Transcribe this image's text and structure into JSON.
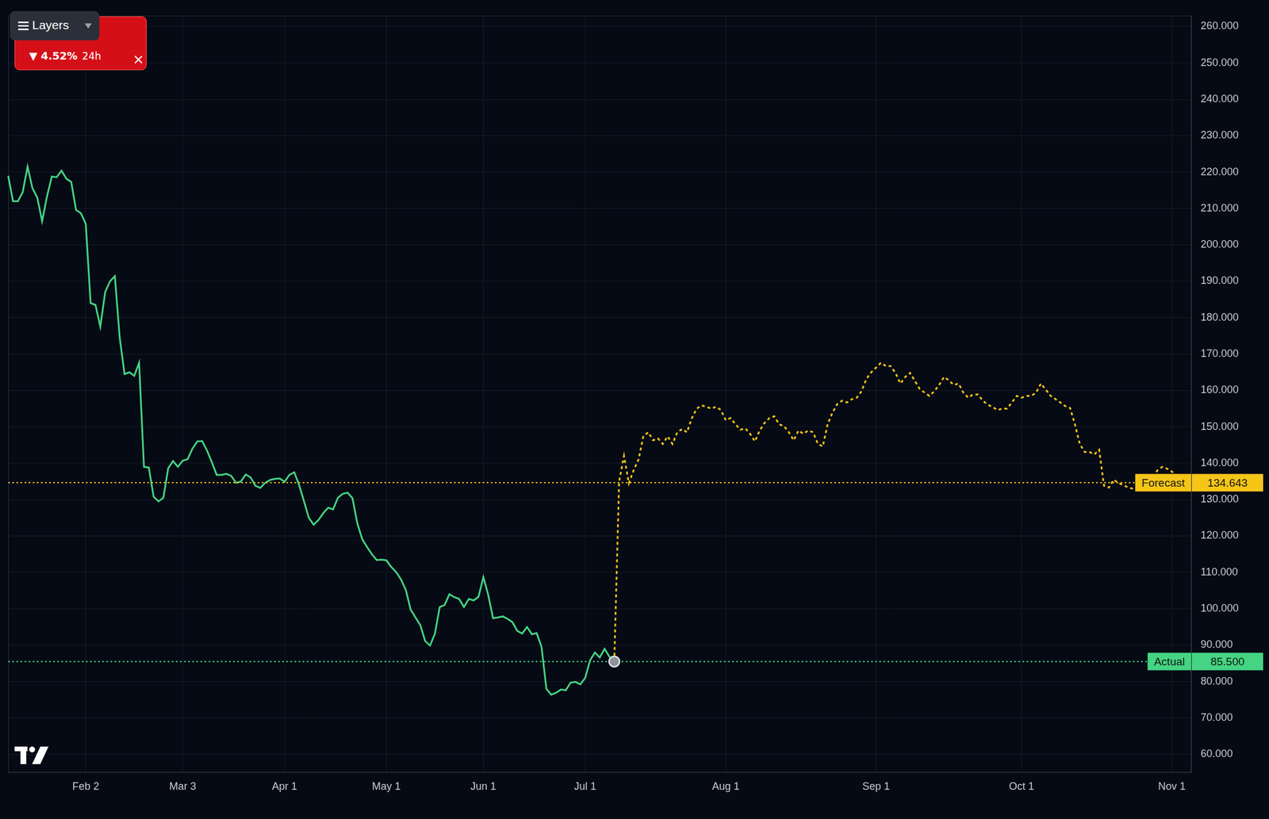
{
  "chart_data": {
    "type": "line",
    "categories": [
      null,
      null,
      null,
      null,
      null,
      null,
      null,
      null,
      null,
      null,
      null,
      null,
      null,
      null,
      null,
      null,
      "Feb 2",
      null,
      null,
      null,
      null,
      null,
      null,
      null,
      null,
      null,
      null,
      null,
      null,
      null,
      null,
      null,
      null,
      null,
      null,
      null,
      "Mar 3",
      null,
      null,
      null,
      null,
      null,
      null,
      null,
      null,
      null,
      null,
      null,
      null,
      null,
      null,
      null,
      null,
      null,
      null,
      null,
      null,
      "Apr 1",
      null,
      null,
      null,
      null,
      null,
      null,
      null,
      null,
      null,
      null,
      null,
      null,
      null,
      null,
      null,
      null,
      null,
      null,
      null,
      null,
      "May 1",
      null,
      null,
      null,
      null,
      null,
      null,
      null,
      null,
      null,
      null,
      null,
      null,
      null,
      null,
      null,
      null,
      null,
      null,
      null,
      "Jun 1",
      null,
      null,
      null,
      null,
      null,
      null,
      null,
      null,
      null,
      null,
      null,
      null,
      null,
      null,
      null,
      null,
      null,
      null,
      null,
      null,
      "Jul 1",
      null,
      null,
      null,
      null,
      null,
      null,
      null,
      null,
      null,
      null,
      null,
      null,
      null,
      null,
      null,
      null,
      null,
      null,
      null,
      null,
      null,
      null,
      null,
      null,
      null,
      null,
      null,
      null,
      "Aug 1",
      null,
      null,
      null,
      null,
      null,
      null,
      null,
      null,
      null,
      null,
      null,
      null,
      null,
      null,
      null,
      null,
      null,
      null,
      null,
      null,
      null,
      null,
      null,
      null,
      null,
      null,
      null,
      null,
      null,
      null,
      "Sep 1",
      null,
      null,
      null,
      null,
      null,
      null,
      null,
      null,
      null,
      null,
      null,
      null,
      null,
      null,
      null,
      null,
      null,
      null,
      null,
      null,
      null,
      null,
      null,
      null,
      null,
      null,
      null,
      null,
      null,
      "Oct 1",
      null,
      null,
      null,
      null,
      null,
      null,
      null,
      null,
      null,
      null,
      null,
      null,
      null,
      null,
      null,
      null,
      null,
      null,
      null,
      null,
      null,
      null,
      null,
      null,
      null,
      null,
      null,
      null,
      null,
      null,
      "Nov 1",
      null,
      null,
      null,
      null
    ],
    "series": [
      {
        "name": "Actual",
        "color": "#45d483",
        "line_style": "solid",
        "marker": "last",
        "values": [
          219,
          212,
          212,
          214.5,
          221.5,
          215.6,
          213,
          206.5,
          213.3,
          218.8,
          218.6,
          220.4,
          218.2,
          217.3,
          209.6,
          208.7,
          205.8,
          184,
          183.5,
          177.5,
          187,
          190,
          191.4,
          174.5,
          164.5,
          165,
          164,
          167.6,
          139,
          138.8,
          130.8,
          129.5,
          130.5,
          138.6,
          140.6,
          139,
          140.7,
          141.1,
          144,
          146,
          146.1,
          143.5,
          140.3,
          136.8,
          136.8,
          137.1,
          136.5,
          134.6,
          135,
          136.9,
          136.1,
          133.8,
          133.2,
          134.6,
          135.4,
          135.7,
          135.8,
          134.9,
          136.8,
          137.5,
          134,
          129.6,
          125,
          123.1,
          124.4,
          126.3,
          127.8,
          127.3,
          130.5,
          131.6,
          131.9,
          130.4,
          123.5,
          119.2,
          117,
          115,
          113.4,
          113.5,
          113.3,
          111.5,
          110.1,
          108.1,
          105.2,
          99.8,
          97.6,
          95.5,
          91.1,
          89.9,
          93.1,
          100.5,
          101,
          104,
          103.2,
          102.7,
          100.5,
          102.7,
          102.3,
          103.3,
          108.7,
          103.8,
          97.4,
          97.6,
          97.9,
          97.2,
          96.3,
          93.9,
          93.2,
          95,
          93,
          93.3,
          89.5,
          78,
          76.4,
          76.9,
          77.8,
          77.6,
          79.7,
          79.9,
          79.2,
          81,
          85.8,
          88,
          86.6,
          89,
          86.8,
          85.5,
          null,
          null,
          null,
          null,
          null,
          null,
          null,
          null,
          null,
          null,
          null,
          null,
          null,
          null,
          null,
          null,
          null,
          null,
          null,
          null,
          null,
          null,
          null,
          null,
          null,
          null,
          null,
          null,
          null,
          null,
          null,
          null,
          null,
          null,
          null,
          null,
          null,
          null,
          null,
          null,
          null,
          null,
          null,
          null,
          null,
          null,
          null,
          null,
          null,
          null,
          null,
          null,
          null,
          null,
          null,
          null,
          null,
          null,
          null,
          null,
          null,
          null,
          null,
          null,
          null,
          null,
          null,
          null,
          null,
          null,
          null,
          null,
          null,
          null,
          null,
          null,
          null,
          null,
          null,
          null,
          null,
          null,
          null,
          null,
          null,
          null,
          null,
          null,
          null,
          null,
          null,
          null,
          null,
          null,
          null,
          null,
          null,
          null,
          null,
          null,
          null,
          null,
          null,
          null,
          null,
          null,
          null,
          null,
          null,
          null,
          null,
          null,
          null,
          null,
          null,
          null,
          null,
          null,
          null
        ]
      },
      {
        "name": "Forecast",
        "color": "#f5c518",
        "line_style": "dotted",
        "values": [
          null,
          null,
          null,
          null,
          null,
          null,
          null,
          null,
          null,
          null,
          null,
          null,
          null,
          null,
          null,
          null,
          null,
          null,
          null,
          null,
          null,
          null,
          null,
          null,
          null,
          null,
          null,
          null,
          null,
          null,
          null,
          null,
          null,
          null,
          null,
          null,
          null,
          null,
          null,
          null,
          null,
          null,
          null,
          null,
          null,
          null,
          null,
          null,
          null,
          null,
          null,
          null,
          null,
          null,
          null,
          null,
          null,
          null,
          null,
          null,
          null,
          null,
          null,
          null,
          null,
          null,
          null,
          null,
          null,
          null,
          null,
          null,
          null,
          null,
          null,
          null,
          null,
          null,
          null,
          null,
          null,
          null,
          null,
          null,
          null,
          null,
          null,
          null,
          null,
          null,
          null,
          null,
          null,
          null,
          null,
          null,
          null,
          null,
          null,
          null,
          null,
          null,
          null,
          null,
          null,
          null,
          null,
          null,
          null,
          null,
          null,
          null,
          null,
          null,
          null,
          null,
          null,
          null,
          null,
          null,
          null,
          null,
          null,
          null,
          null,
          85.5,
          135,
          142,
          134.5,
          138.1,
          141,
          147.4,
          148.5,
          146.3,
          146.8,
          145.3,
          147.4,
          145.3,
          148.5,
          149.4,
          148.5,
          152.4,
          155,
          155.9,
          155.5,
          155,
          155.5,
          154.6,
          151.8,
          152.4,
          150.7,
          149.2,
          149.6,
          148.1,
          146,
          149,
          151.1,
          152.4,
          152.9,
          150.7,
          150.2,
          148.5,
          146.3,
          149,
          148.1,
          149,
          148.5,
          145.3,
          144.6,
          150.7,
          153.9,
          156.3,
          157.2,
          156.7,
          157.6,
          158,
          159.8,
          163.2,
          165,
          166.3,
          167.6,
          166.7,
          166.7,
          164.8,
          161.9,
          163.7,
          164.8,
          162.6,
          160.4,
          159.4,
          158.5,
          159.8,
          161.5,
          163.7,
          162.8,
          161.5,
          161.9,
          159.4,
          158,
          158.9,
          158.9,
          157.2,
          156.1,
          155.5,
          154.6,
          155,
          155,
          156.7,
          158.5,
          158,
          158.5,
          158.5,
          159.4,
          161.9,
          160.2,
          158.5,
          157.6,
          156.7,
          155.7,
          155.2,
          150.7,
          145.3,
          143.1,
          143.1,
          142.4,
          143.7,
          133.8,
          133.3,
          135.5,
          134.5,
          134,
          133.3,
          133,
          133.5,
          133,
          134,
          136,
          138,
          139,
          138.5,
          137.7,
          136.6,
          null,
          null,
          null
        ]
      }
    ],
    "annotations": [
      {
        "series": "Forecast",
        "value": 134.643,
        "value_label": "134.643"
      },
      {
        "series": "Actual",
        "value": 85.5,
        "value_label": "85.500"
      }
    ],
    "ylim": [
      55,
      263
    ],
    "yticks": [
      {
        "value": 60,
        "label": "60.000"
      },
      {
        "value": 70,
        "label": "70.000"
      },
      {
        "value": 80,
        "label": "80.000"
      },
      {
        "value": 90,
        "label": "90.000"
      },
      {
        "value": 100,
        "label": "100.000"
      },
      {
        "value": 110,
        "label": "110.000"
      },
      {
        "value": 120,
        "label": "120.000"
      },
      {
        "value": 130,
        "label": "130.000"
      },
      {
        "value": 140,
        "label": "140.000"
      },
      {
        "value": 150,
        "label": "150.000"
      },
      {
        "value": 160,
        "label": "160.000"
      },
      {
        "value": 170,
        "label": "170.000"
      },
      {
        "value": 180,
        "label": "180.000"
      },
      {
        "value": 190,
        "label": "190.000"
      },
      {
        "value": 200,
        "label": "200.000"
      },
      {
        "value": 210,
        "label": "210.000"
      },
      {
        "value": 220,
        "label": "220.000"
      },
      {
        "value": 230,
        "label": "230.000"
      },
      {
        "value": 240,
        "label": "240.000"
      },
      {
        "value": 250,
        "label": "250.000"
      },
      {
        "value": 260,
        "label": "260.000"
      }
    ],
    "grid": true
  },
  "overlay": {
    "layers_button": "Layers",
    "badge": {
      "change": "▼ 4.52%",
      "period": "24h"
    }
  }
}
